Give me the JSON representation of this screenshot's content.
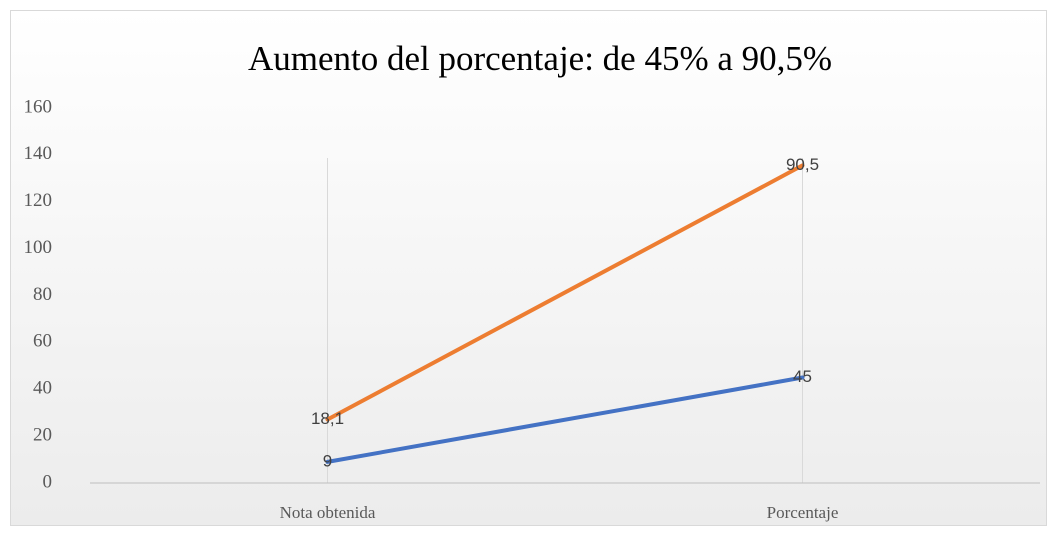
{
  "chart_data": {
    "type": "line",
    "stacked": true,
    "title": "Aumento del porcentaje: de 45% a 90,5%",
    "categories": [
      "Nota obtenida",
      "Porcentaje"
    ],
    "series": [
      {
        "color": "#4472c4",
        "values": [
          9,
          45
        ],
        "value_labels": [
          "9",
          "45"
        ]
      },
      {
        "color": "#ed7d31",
        "values": [
          18.1,
          90.5
        ],
        "value_labels": [
          "18,1",
          "90,5"
        ]
      }
    ],
    "ylim": [
      0,
      160
    ],
    "yticks": [
      0,
      20,
      40,
      60,
      80,
      100,
      120,
      140,
      160
    ],
    "grid_x": true
  }
}
